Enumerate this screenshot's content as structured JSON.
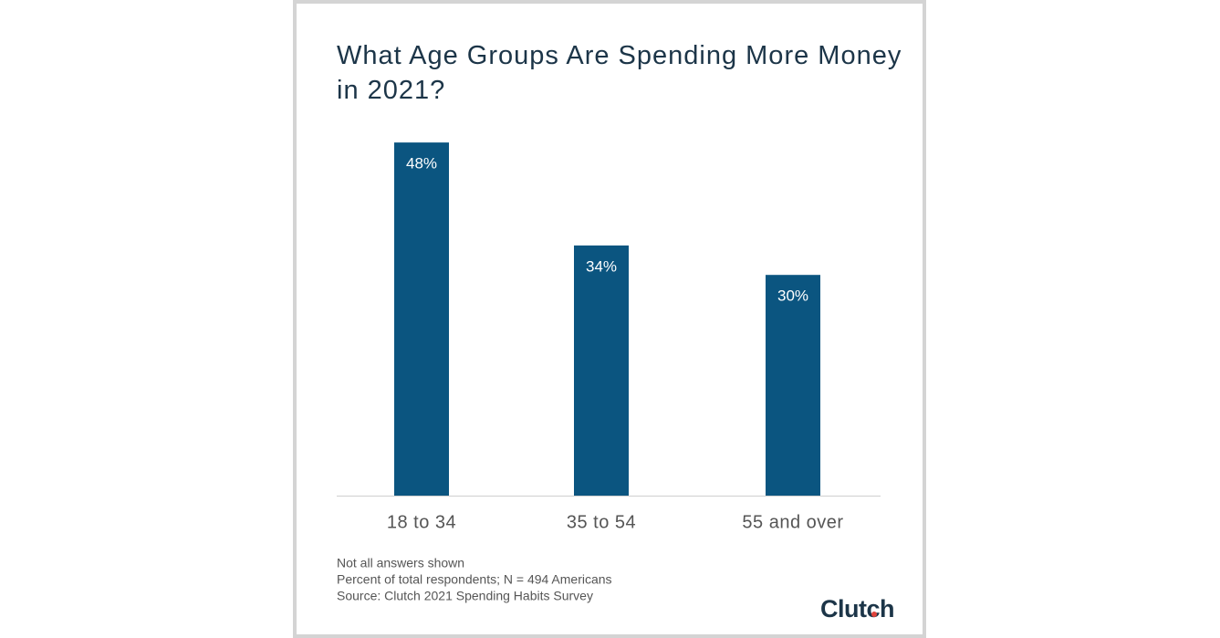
{
  "chart_data": {
    "type": "bar",
    "title": "What Age Groups Are Spending More Money in 2021?",
    "categories": [
      "18 to 34",
      "35 to 54",
      "55 and over"
    ],
    "values": [
      48,
      34,
      30
    ],
    "value_labels": [
      "48%",
      "34%",
      "30%"
    ],
    "color": "#0b5580",
    "notes": [
      "Not all answers shown",
      "Percent of total respondents; N = 494 Americans",
      "Source: Clutch 2021 Spending Habits Survey"
    ],
    "logo": "Clutch"
  }
}
